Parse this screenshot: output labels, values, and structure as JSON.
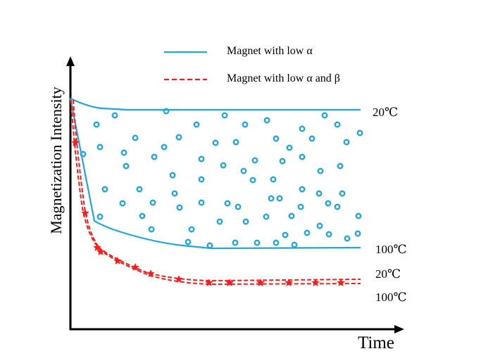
{
  "legend": [
    {
      "label": "Magnet with low α",
      "style": "solid",
      "color": "#1ea7e1"
    },
    {
      "label": "Magnet with low  α and β",
      "style": "dashed-star",
      "color": "#ff1a1a"
    }
  ],
  "axes": {
    "xlabel": "Time",
    "ylabel": "Magnetization Intensity"
  },
  "curve_labels": {
    "blue_top": "20℃",
    "blue_bottom": "100℃",
    "red_top": "20℃",
    "red_bottom": "100℃"
  },
  "colors": {
    "blue": "#1ea7e1",
    "red": "#ff1a1a",
    "axis": "#000000"
  }
}
